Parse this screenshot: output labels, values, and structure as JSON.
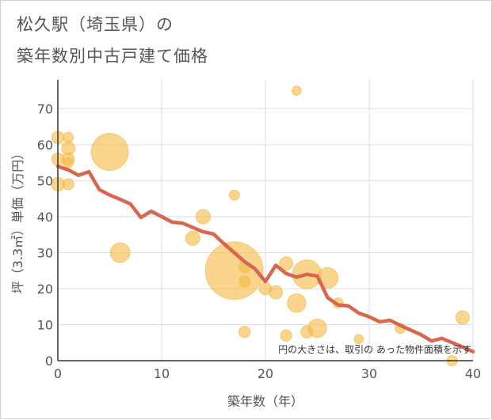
{
  "chart_data": {
    "type": "scatter",
    "title": [
      "松久駅（埼玉県）の",
      "築年数別中古戸建て価格"
    ],
    "xlabel": "築年数（年）",
    "ylabel": "坪（3.3㎡）単価（万円）",
    "xlim": [
      0,
      40
    ],
    "ylim": [
      0,
      78
    ],
    "xticks": [
      0,
      10,
      20,
      30,
      40
    ],
    "yticks": [
      0,
      10,
      20,
      30,
      40,
      50,
      60,
      70
    ],
    "grid": true,
    "note": "円の大きさは、取引の あった物件面積を示す",
    "colors": {
      "bubble": "#f5b942",
      "line": "#d9664f",
      "grid": "#d9dde8",
      "axis": "#333333"
    },
    "bubbles": [
      {
        "x": 0,
        "y": 62,
        "s": 1.2
      },
      {
        "x": 0,
        "y": 56,
        "s": 1.2
      },
      {
        "x": 0,
        "y": 49,
        "s": 1.3
      },
      {
        "x": 1,
        "y": 62,
        "s": 1.0
      },
      {
        "x": 1,
        "y": 59,
        "s": 1.3
      },
      {
        "x": 1,
        "y": 56,
        "s": 1.2
      },
      {
        "x": 1,
        "y": 55,
        "s": 1.0
      },
      {
        "x": 1,
        "y": 49,
        "s": 1.1
      },
      {
        "x": 5,
        "y": 58,
        "s": 3.6
      },
      {
        "x": 6,
        "y": 30,
        "s": 1.9
      },
      {
        "x": 13,
        "y": 34,
        "s": 1.4
      },
      {
        "x": 14,
        "y": 40,
        "s": 1.4
      },
      {
        "x": 17,
        "y": 46,
        "s": 1.0
      },
      {
        "x": 17,
        "y": 25,
        "s": 5.6
      },
      {
        "x": 18,
        "y": 26,
        "s": 1.1
      },
      {
        "x": 18,
        "y": 22,
        "s": 1.1
      },
      {
        "x": 18,
        "y": 8,
        "s": 1.1
      },
      {
        "x": 20,
        "y": 20,
        "s": 1.2
      },
      {
        "x": 21,
        "y": 19,
        "s": 1.3
      },
      {
        "x": 22,
        "y": 27,
        "s": 1.3
      },
      {
        "x": 22,
        "y": 7,
        "s": 1.1
      },
      {
        "x": 23,
        "y": 75,
        "s": 0.9
      },
      {
        "x": 23,
        "y": 16,
        "s": 1.8
      },
      {
        "x": 24,
        "y": 24,
        "s": 2.8
      },
      {
        "x": 24,
        "y": 8,
        "s": 1.2
      },
      {
        "x": 25,
        "y": 9,
        "s": 1.8
      },
      {
        "x": 26,
        "y": 23,
        "s": 2.0
      },
      {
        "x": 27,
        "y": 16,
        "s": 1.0
      },
      {
        "x": 29,
        "y": 6,
        "s": 0.9
      },
      {
        "x": 33,
        "y": 9,
        "s": 1.0
      },
      {
        "x": 38,
        "y": 0,
        "s": 1.0
      },
      {
        "x": 39,
        "y": 12,
        "s": 1.3
      }
    ],
    "trend": {
      "x": [
        0,
        1,
        2,
        3,
        4,
        5,
        6,
        7,
        8,
        9,
        10,
        11,
        12,
        13,
        14,
        15,
        16,
        17,
        18,
        19,
        20,
        21,
        22,
        23,
        24,
        25,
        26,
        27,
        28,
        29,
        30,
        31,
        32,
        33,
        34,
        35,
        36,
        37,
        38,
        39,
        40
      ],
      "y": [
        54,
        53,
        51.5,
        52.5,
        47.5,
        46,
        44.8,
        43.5,
        39.8,
        41.5,
        40,
        38.5,
        38.2,
        37,
        35.8,
        35.2,
        32.5,
        30,
        27.5,
        25.5,
        22,
        26.5,
        24.2,
        23.2,
        24,
        23.5,
        17.5,
        15.5,
        15.2,
        13.2,
        12.2,
        10.8,
        11.2,
        9.8,
        8.5,
        7.2,
        5.5,
        6.2,
        5,
        3.8,
        2.5
      ]
    }
  }
}
